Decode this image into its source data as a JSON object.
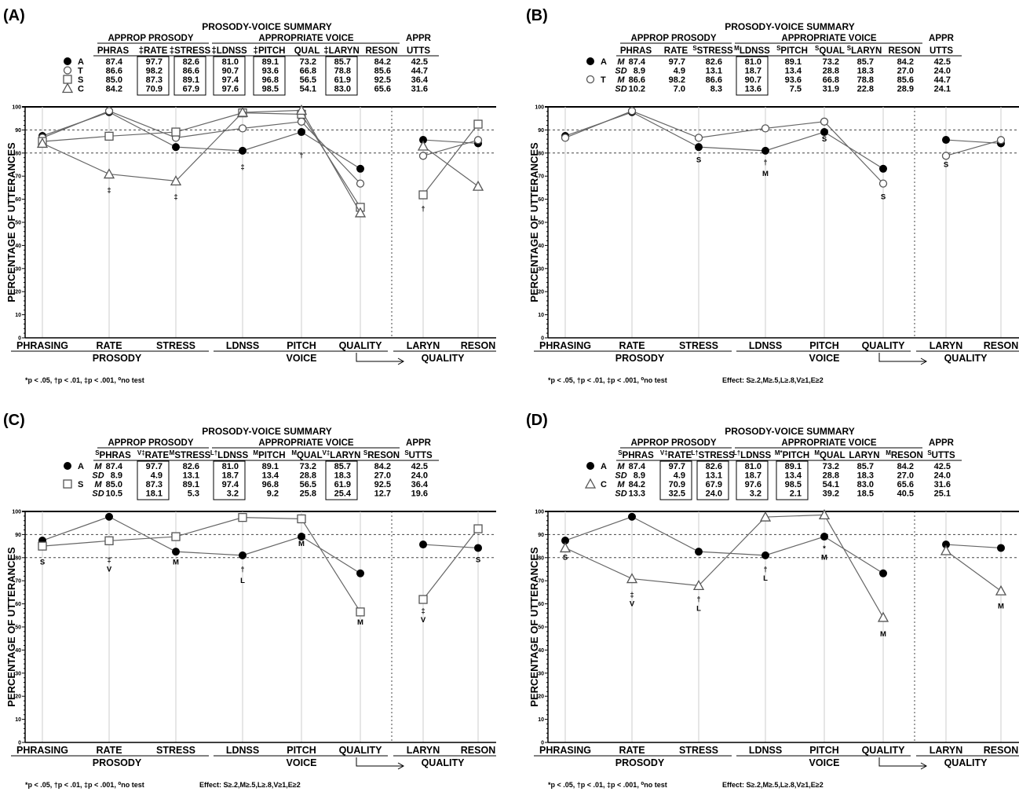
{
  "chart_data": [
    {
      "type": "line",
      "panel_label": "(A)",
      "summary": {
        "title": "PROSODY-VOICE SUMMARY",
        "group_prosody": "APPROP PROSODY",
        "group_voice": "APPROPRIATE VOICE",
        "group_utts": "APPR",
        "columns": [
          "PHRAS",
          "‡RATE",
          "‡STRESS",
          "‡LDNSS",
          "‡PITCH",
          "QUAL",
          "‡LARYN",
          "RESON",
          "UTTS"
        ],
        "boxed": [
          false,
          true,
          true,
          true,
          true,
          false,
          true,
          false,
          false
        ],
        "rows": [
          {
            "marker": "circle-filled",
            "group": "A",
            "stat": "",
            "values": [
              "87.4",
              "97.7",
              "82.6",
              "81.0",
              "89.1",
              "73.2",
              "85.7",
              "84.2",
              "42.5"
            ]
          },
          {
            "marker": "circle-open",
            "group": "T",
            "stat": "",
            "values": [
              "86.6",
              "98.2",
              "86.6",
              "90.7",
              "93.6",
              "66.8",
              "78.8",
              "85.6",
              "44.7"
            ]
          },
          {
            "marker": "square-open",
            "group": "S",
            "stat": "",
            "values": [
              "85.0",
              "87.3",
              "89.1",
              "97.4",
              "96.8",
              "56.5",
              "61.9",
              "92.5",
              "36.4"
            ]
          },
          {
            "marker": "triangle-open",
            "group": "C",
            "stat": "",
            "values": [
              "84.2",
              "70.9",
              "67.9",
              "97.6",
              "98.5",
              "54.1",
              "83.0",
              "65.6",
              "31.6"
            ]
          }
        ]
      },
      "ylabel": "PERCENTAGE OF UTTERANCES",
      "ylim": [
        0,
        100
      ],
      "yticks": [
        "0",
        "10",
        "20",
        "30",
        "40",
        "50",
        "60",
        "70",
        "80",
        "90",
        "100"
      ],
      "reference_lines": [
        80,
        90
      ],
      "categories": [
        "PHRASING",
        "RATE",
        "STRESS",
        "LDNSS",
        "PITCH",
        "QUALITY",
        "LARYN",
        "RESON"
      ],
      "groups": [
        {
          "label": "PROSODY",
          "from": 0,
          "to": 2
        },
        {
          "label": "VOICE",
          "from": 3,
          "to": 5
        },
        {
          "label": "QUALITY",
          "from": 6,
          "to": 7
        }
      ],
      "divider_after": 5,
      "series": [
        {
          "marker": "circle-filled",
          "values": [
            87.4,
            97.7,
            82.6,
            81.0,
            89.1,
            73.2,
            85.7,
            84.2
          ]
        },
        {
          "marker": "circle-open",
          "values": [
            86.6,
            98.2,
            86.6,
            90.7,
            93.6,
            66.8,
            78.8,
            85.6
          ]
        },
        {
          "marker": "square-open",
          "values": [
            85.0,
            87.3,
            89.1,
            97.4,
            96.8,
            56.5,
            61.9,
            92.5
          ]
        },
        {
          "marker": "triangle-open",
          "values": [
            84.2,
            70.9,
            67.9,
            97.6,
            98.5,
            54.1,
            83.0,
            65.6
          ]
        }
      ],
      "annotations": [
        {
          "cat": 1,
          "y": 63,
          "text": "‡"
        },
        {
          "cat": 2,
          "y": 60,
          "text": "‡"
        },
        {
          "cat": 3,
          "y": 73,
          "text": "‡"
        },
        {
          "cat": 4,
          "y": 78,
          "text": "†"
        },
        {
          "cat": 6,
          "y": 55,
          "text": "†"
        }
      ],
      "footnote": "*p < .05, †p < .01, ‡p < .001, ⁰no test",
      "effect": ""
    },
    {
      "type": "line",
      "panel_label": "(B)",
      "summary": {
        "title": "PROSODY-VOICE SUMMARY",
        "group_prosody": "APPROP PROSODY",
        "group_voice": "APPROPRIATE VOICE",
        "group_utts": "APPR",
        "columns": [
          "PHRAS",
          "RATE",
          "STRESS",
          "LDNSS",
          "PITCH",
          "QUAL",
          "LARYN",
          "RESON",
          "UTTS"
        ],
        "column_prefixes": [
          "",
          "",
          "S",
          "M",
          "S",
          "S",
          "S",
          "",
          ""
        ],
        "boxed": [
          false,
          false,
          false,
          true,
          false,
          false,
          false,
          false,
          false
        ],
        "rows": [
          {
            "marker": "circle-filled",
            "group": "A",
            "stat": "M",
            "values": [
              "87.4",
              "97.7",
              "82.6",
              "81.0",
              "89.1",
              "73.2",
              "85.7",
              "84.2",
              "42.5"
            ]
          },
          {
            "marker": "",
            "group": "",
            "stat": "SD",
            "values": [
              "8.9",
              "4.9",
              "13.1",
              "18.7",
              "13.4",
              "28.8",
              "18.3",
              "27.0",
              "24.0"
            ]
          },
          {
            "marker": "circle-open",
            "group": "T",
            "stat": "M",
            "values": [
              "86.6",
              "98.2",
              "86.6",
              "90.7",
              "93.6",
              "66.8",
              "78.8",
              "85.6",
              "44.7"
            ]
          },
          {
            "marker": "",
            "group": "",
            "stat": "SD",
            "values": [
              "10.2",
              "7.0",
              "8.3",
              "13.6",
              "7.5",
              "31.9",
              "22.8",
              "28.9",
              "24.1"
            ]
          }
        ]
      },
      "ylabel": "PERCENTAGE OF UTTERANCES",
      "ylim": [
        0,
        100
      ],
      "yticks": [
        "0",
        "10",
        "20",
        "30",
        "40",
        "50",
        "60",
        "70",
        "80",
        "90",
        "100"
      ],
      "reference_lines": [
        80,
        90
      ],
      "categories": [
        "PHRASING",
        "RATE",
        "STRESS",
        "LDNSS",
        "PITCH",
        "QUALITY",
        "LARYN",
        "RESON"
      ],
      "groups": [
        {
          "label": "PROSODY",
          "from": 0,
          "to": 2
        },
        {
          "label": "VOICE",
          "from": 3,
          "to": 5
        },
        {
          "label": "QUALITY",
          "from": 6,
          "to": 7
        }
      ],
      "divider_after": 5,
      "series": [
        {
          "marker": "circle-filled",
          "values": [
            87.4,
            97.7,
            82.6,
            81.0,
            89.1,
            73.2,
            85.7,
            84.2
          ]
        },
        {
          "marker": "circle-open",
          "values": [
            86.6,
            98.2,
            86.6,
            90.7,
            93.6,
            66.8,
            78.8,
            85.6
          ]
        }
      ],
      "annotations": [
        {
          "cat": 2,
          "y": 76,
          "text": "S"
        },
        {
          "cat": 3,
          "y": 75,
          "text": "†"
        },
        {
          "cat": 3,
          "y": 70,
          "text": "M"
        },
        {
          "cat": 4,
          "y": 85,
          "text": "S"
        },
        {
          "cat": 5,
          "y": 60,
          "text": "S"
        },
        {
          "cat": 6,
          "y": 74,
          "text": "S"
        }
      ],
      "footnote": "*p < .05, †p < .01, ‡p < .001, ⁰no test",
      "effect": "Effect: S≥.2,M≥.5,L≥.8,V≥1,E≥2"
    },
    {
      "type": "line",
      "panel_label": "(C)",
      "summary": {
        "title": "PROSODY-VOICE SUMMARY",
        "group_prosody": "APPROP PROSODY",
        "group_voice": "APPROPRIATE VOICE",
        "group_utts": "APPR",
        "columns": [
          "PHRAS",
          "RATE",
          "STRESS",
          "LDNSS",
          "PITCH",
          "QUAL",
          "LARYN",
          "RESON",
          "UTTS"
        ],
        "column_prefixes": [
          "S",
          "V‡",
          "M",
          "L†",
          "M",
          "M",
          "V‡",
          "S",
          "S"
        ],
        "boxed": [
          false,
          true,
          false,
          true,
          false,
          false,
          true,
          false,
          false
        ],
        "rows": [
          {
            "marker": "circle-filled",
            "group": "A",
            "stat": "M",
            "values": [
              "87.4",
              "97.7",
              "82.6",
              "81.0",
              "89.1",
              "73.2",
              "85.7",
              "84.2",
              "42.5"
            ]
          },
          {
            "marker": "",
            "group": "",
            "stat": "SD",
            "values": [
              "8.9",
              "4.9",
              "13.1",
              "18.7",
              "13.4",
              "28.8",
              "18.3",
              "27.0",
              "24.0"
            ]
          },
          {
            "marker": "square-open",
            "group": "S",
            "stat": "M",
            "values": [
              "85.0",
              "87.3",
              "89.1",
              "97.4",
              "96.8",
              "56.5",
              "61.9",
              "92.5",
              "36.4"
            ]
          },
          {
            "marker": "",
            "group": "",
            "stat": "SD",
            "values": [
              "10.5",
              "18.1",
              "5.3",
              "3.2",
              "9.2",
              "25.8",
              "25.4",
              "12.7",
              "19.6"
            ]
          }
        ]
      },
      "ylabel": "PERCENTAGE OF UTTERANCES",
      "ylim": [
        0,
        100
      ],
      "yticks": [
        "0",
        "10",
        "20",
        "30",
        "40",
        "50",
        "60",
        "70",
        "80",
        "90",
        "100"
      ],
      "reference_lines": [
        80,
        90
      ],
      "categories": [
        "PHRASING",
        "RATE",
        "STRESS",
        "LDNSS",
        "PITCH",
        "QUALITY",
        "LARYN",
        "RESON"
      ],
      "groups": [
        {
          "label": "PROSODY",
          "from": 0,
          "to": 2
        },
        {
          "label": "VOICE",
          "from": 3,
          "to": 5
        },
        {
          "label": "QUALITY",
          "from": 6,
          "to": 7
        }
      ],
      "divider_after": 5,
      "series": [
        {
          "marker": "circle-filled",
          "values": [
            87.4,
            97.7,
            82.6,
            81.0,
            89.1,
            73.2,
            85.7,
            84.2
          ]
        },
        {
          "marker": "square-open",
          "values": [
            85.0,
            87.3,
            89.1,
            97.4,
            96.8,
            56.5,
            61.9,
            92.5
          ]
        }
      ],
      "annotations": [
        {
          "cat": 0,
          "y": 77,
          "text": "S"
        },
        {
          "cat": 1,
          "y": 78,
          "text": "‡"
        },
        {
          "cat": 1,
          "y": 74,
          "text": "V"
        },
        {
          "cat": 2,
          "y": 77,
          "text": "M"
        },
        {
          "cat": 3,
          "y": 74,
          "text": "†"
        },
        {
          "cat": 3,
          "y": 69,
          "text": "L"
        },
        {
          "cat": 4,
          "y": 85,
          "text": "M"
        },
        {
          "cat": 5,
          "y": 51,
          "text": "M"
        },
        {
          "cat": 6,
          "y": 56,
          "text": "‡"
        },
        {
          "cat": 6,
          "y": 52,
          "text": "V"
        },
        {
          "cat": 7,
          "y": 78,
          "text": "S"
        }
      ],
      "footnote": "*p < .05, †p < .01, ‡p < .001, ⁰no test",
      "effect": "Effect: S≥.2,M≥.5,L≥.8,V≥1,E≥2"
    },
    {
      "type": "line",
      "panel_label": "(D)",
      "summary": {
        "title": "PROSODY-VOICE SUMMARY",
        "group_prosody": "APPROP PROSODY",
        "group_voice": "APPROPRIATE VOICE",
        "group_utts": "APPR",
        "columns": [
          "PHRAS",
          "RATE",
          "STRESS",
          "LDNSS",
          "PITCH",
          "QUAL",
          "LARYN",
          "RESON",
          "UTTS"
        ],
        "column_prefixes": [
          "S",
          "V‡",
          "L†",
          "L†",
          "M*",
          "M",
          "",
          "M",
          "S"
        ],
        "boxed": [
          false,
          true,
          true,
          true,
          true,
          false,
          false,
          false,
          false
        ],
        "rows": [
          {
            "marker": "circle-filled",
            "group": "A",
            "stat": "M",
            "values": [
              "87.4",
              "97.7",
              "82.6",
              "81.0",
              "89.1",
              "73.2",
              "85.7",
              "84.2",
              "42.5"
            ]
          },
          {
            "marker": "",
            "group": "",
            "stat": "SD",
            "values": [
              "8.9",
              "4.9",
              "13.1",
              "18.7",
              "13.4",
              "28.8",
              "18.3",
              "27.0",
              "24.0"
            ]
          },
          {
            "marker": "triangle-open",
            "group": "C",
            "stat": "M",
            "values": [
              "84.2",
              "70.9",
              "67.9",
              "97.6",
              "98.5",
              "54.1",
              "83.0",
              "65.6",
              "31.6"
            ]
          },
          {
            "marker": "",
            "group": "",
            "stat": "SD",
            "values": [
              "13.3",
              "32.5",
              "24.0",
              "3.2",
              "2.1",
              "39.2",
              "18.5",
              "40.5",
              "25.1"
            ]
          }
        ]
      },
      "ylabel": "PERCENTAGE OF UTTERANCES",
      "ylim": [
        0,
        100
      ],
      "yticks": [
        "0",
        "10",
        "20",
        "30",
        "40",
        "50",
        "60",
        "70",
        "80",
        "90",
        "100"
      ],
      "reference_lines": [
        80,
        90
      ],
      "categories": [
        "PHRASING",
        "RATE",
        "STRESS",
        "LDNSS",
        "PITCH",
        "QUALITY",
        "LARYN",
        "RESON"
      ],
      "groups": [
        {
          "label": "PROSODY",
          "from": 0,
          "to": 2
        },
        {
          "label": "VOICE",
          "from": 3,
          "to": 5
        },
        {
          "label": "QUALITY",
          "from": 6,
          "to": 7
        }
      ],
      "divider_after": 5,
      "series": [
        {
          "marker": "circle-filled",
          "values": [
            87.4,
            97.7,
            82.6,
            81.0,
            89.1,
            73.2,
            85.7,
            84.2
          ]
        },
        {
          "marker": "triangle-open",
          "values": [
            84.2,
            70.9,
            67.9,
            97.6,
            98.5,
            54.1,
            83.0,
            65.6
          ]
        }
      ],
      "annotations": [
        {
          "cat": 0,
          "y": 79,
          "text": "S"
        },
        {
          "cat": 1,
          "y": 63,
          "text": "‡"
        },
        {
          "cat": 1,
          "y": 59,
          "text": "V"
        },
        {
          "cat": 2,
          "y": 61,
          "text": "†"
        },
        {
          "cat": 2,
          "y": 57,
          "text": "L"
        },
        {
          "cat": 3,
          "y": 74,
          "text": "†"
        },
        {
          "cat": 3,
          "y": 70,
          "text": "L"
        },
        {
          "cat": 4,
          "y": 83,
          "text": "*"
        },
        {
          "cat": 4,
          "y": 79,
          "text": "M"
        },
        {
          "cat": 5,
          "y": 46,
          "text": "M"
        },
        {
          "cat": 7,
          "y": 58,
          "text": "M"
        }
      ],
      "footnote": "*p < .05, †p < .01, ‡p < .001, ⁰no test",
      "effect": "Effect: S≥.2,M≥.5,L≥.8,V≥1,E≥2"
    }
  ]
}
